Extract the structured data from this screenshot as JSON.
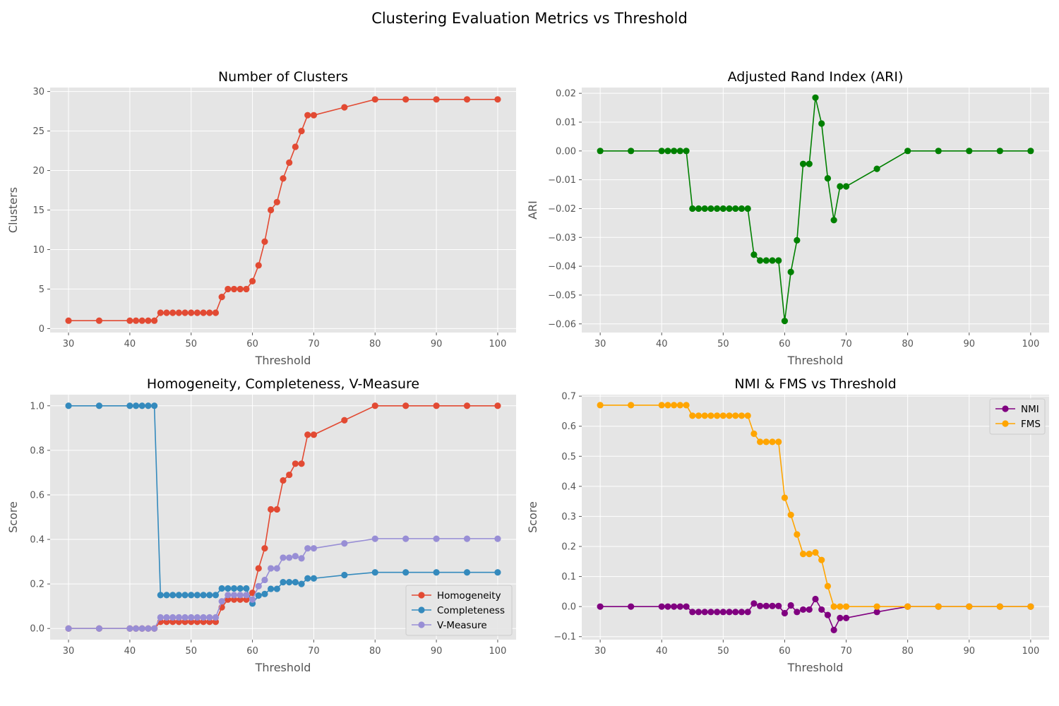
{
  "figure": {
    "suptitle": "Clustering Evaluation Metrics vs Threshold"
  },
  "chart_data": [
    {
      "type": "line",
      "title": "Number of Clusters",
      "xlabel": "Threshold",
      "ylabel": "Clusters",
      "xlim": [
        27,
        103
      ],
      "ylim": [
        -0.5,
        30.5
      ],
      "xticks": [
        30,
        40,
        50,
        60,
        70,
        80,
        90,
        100
      ],
      "yticks": [
        0,
        5,
        10,
        15,
        20,
        25,
        30
      ],
      "grid": true,
      "legend": null,
      "x": [
        30,
        35,
        40,
        41,
        42,
        43,
        44,
        45,
        46,
        47,
        48,
        49,
        50,
        51,
        52,
        53,
        54,
        55,
        56,
        57,
        58,
        59,
        60,
        61,
        62,
        63,
        64,
        65,
        66,
        67,
        68,
        69,
        70,
        75,
        80,
        85,
        90,
        95,
        100
      ],
      "series": [
        {
          "color": "#E24A33",
          "values": [
            1,
            1,
            1,
            1,
            1,
            1,
            1,
            2,
            2,
            2,
            2,
            2,
            2,
            2,
            2,
            2,
            2,
            4,
            5,
            5,
            5,
            5,
            6,
            8,
            11,
            15,
            16,
            19,
            21,
            23,
            25,
            27,
            27,
            28,
            29,
            29,
            29,
            29,
            29
          ]
        }
      ]
    },
    {
      "type": "line",
      "title": "Adjusted Rand Index (ARI)",
      "xlabel": "Threshold",
      "ylabel": "ARI",
      "xlim": [
        27,
        103
      ],
      "ylim": [
        -0.063,
        0.022
      ],
      "xticks": [
        30,
        40,
        50,
        60,
        70,
        80,
        90,
        100
      ],
      "yticks": [
        -0.06,
        -0.05,
        -0.04,
        -0.03,
        -0.02,
        -0.01,
        0.0,
        0.01,
        0.02
      ],
      "ytick_labels": [
        "−0.06",
        "−0.05",
        "−0.04",
        "−0.03",
        "−0.02",
        "−0.01",
        "0.00",
        "0.01",
        "0.02"
      ],
      "grid": true,
      "legend": null,
      "x": [
        30,
        35,
        40,
        41,
        42,
        43,
        44,
        45,
        46,
        47,
        48,
        49,
        50,
        51,
        52,
        53,
        54,
        55,
        56,
        57,
        58,
        59,
        60,
        61,
        62,
        63,
        64,
        65,
        66,
        67,
        68,
        69,
        70,
        75,
        80,
        85,
        90,
        95,
        100
      ],
      "series": [
        {
          "color": "#008000",
          "values": [
            0,
            0,
            0,
            0,
            0,
            0,
            0,
            -0.02,
            -0.02,
            -0.02,
            -0.02,
            -0.02,
            -0.02,
            -0.02,
            -0.02,
            -0.02,
            -0.02,
            -0.036,
            -0.038,
            -0.038,
            -0.038,
            -0.038,
            -0.059,
            -0.042,
            -0.031,
            -0.0045,
            -0.0045,
            0.0185,
            0.0095,
            -0.0095,
            -0.024,
            -0.0123,
            -0.0123,
            -0.0062,
            0,
            0,
            0,
            0,
            0
          ]
        }
      ]
    },
    {
      "type": "line",
      "title": "Homogeneity, Completeness, V-Measure",
      "xlabel": "Threshold",
      "ylabel": "Score",
      "xlim": [
        27,
        103
      ],
      "ylim": [
        -0.05,
        1.05
      ],
      "xticks": [
        30,
        40,
        50,
        60,
        70,
        80,
        90,
        100
      ],
      "yticks": [
        0.0,
        0.2,
        0.4,
        0.6,
        0.8,
        1.0
      ],
      "grid": true,
      "legend": "lower-right",
      "x": [
        30,
        35,
        40,
        41,
        42,
        43,
        44,
        45,
        46,
        47,
        48,
        49,
        50,
        51,
        52,
        53,
        54,
        55,
        56,
        57,
        58,
        59,
        60,
        61,
        62,
        63,
        64,
        65,
        66,
        67,
        68,
        69,
        70,
        75,
        80,
        85,
        90,
        95,
        100
      ],
      "series": [
        {
          "name": "Homogeneity",
          "color": "#E24A33",
          "values": [
            0,
            0,
            0,
            0,
            0,
            0,
            0,
            0.03,
            0.03,
            0.03,
            0.03,
            0.03,
            0.03,
            0.03,
            0.03,
            0.03,
            0.03,
            0.095,
            0.13,
            0.13,
            0.13,
            0.13,
            0.16,
            0.27,
            0.36,
            0.535,
            0.535,
            0.665,
            0.69,
            0.74,
            0.74,
            0.87,
            0.87,
            0.935,
            1.0,
            1.0,
            1.0,
            1.0,
            1.0
          ]
        },
        {
          "name": "Completeness",
          "color": "#348ABD",
          "values": [
            1.0,
            1.0,
            1.0,
            1.0,
            1.0,
            1.0,
            1.0,
            0.15,
            0.15,
            0.15,
            0.15,
            0.15,
            0.15,
            0.15,
            0.15,
            0.15,
            0.15,
            0.18,
            0.18,
            0.18,
            0.18,
            0.18,
            0.112,
            0.148,
            0.155,
            0.178,
            0.178,
            0.208,
            0.208,
            0.208,
            0.2,
            0.225,
            0.225,
            0.24,
            0.252,
            0.252,
            0.252,
            0.252,
            0.252
          ]
        },
        {
          "name": "V-Measure",
          "color": "#988ED5",
          "values": [
            0,
            0,
            0,
            0,
            0,
            0,
            0,
            0.05,
            0.05,
            0.05,
            0.05,
            0.05,
            0.05,
            0.05,
            0.05,
            0.05,
            0.05,
            0.122,
            0.15,
            0.15,
            0.15,
            0.15,
            0.13,
            0.19,
            0.218,
            0.27,
            0.27,
            0.318,
            0.318,
            0.325,
            0.315,
            0.36,
            0.36,
            0.382,
            0.403,
            0.403,
            0.403,
            0.403,
            0.403
          ]
        }
      ]
    },
    {
      "type": "line",
      "title": "NMI & FMS vs Threshold",
      "xlabel": "Threshold",
      "ylabel": "Score",
      "xlim": [
        27,
        103
      ],
      "ylim": [
        -0.11,
        0.705
      ],
      "xticks": [
        30,
        40,
        50,
        60,
        70,
        80,
        90,
        100
      ],
      "yticks": [
        -0.1,
        0.0,
        0.1,
        0.2,
        0.3,
        0.4,
        0.5,
        0.6,
        0.7
      ],
      "ytick_labels": [
        "−0.1",
        "0.0",
        "0.1",
        "0.2",
        "0.3",
        "0.4",
        "0.5",
        "0.6",
        "0.7"
      ],
      "grid": true,
      "legend": "upper-right",
      "x": [
        30,
        35,
        40,
        41,
        42,
        43,
        44,
        45,
        46,
        47,
        48,
        49,
        50,
        51,
        52,
        53,
        54,
        55,
        56,
        57,
        58,
        59,
        60,
        61,
        62,
        63,
        64,
        65,
        66,
        67,
        68,
        69,
        70,
        75,
        80,
        85,
        90,
        95,
        100
      ],
      "series": [
        {
          "name": "NMI",
          "color": "#800080",
          "values": [
            0,
            0,
            0,
            0,
            0,
            0,
            0,
            -0.018,
            -0.018,
            -0.018,
            -0.018,
            -0.018,
            -0.018,
            -0.018,
            -0.018,
            -0.018,
            -0.018,
            0.01,
            0.002,
            0.002,
            0.002,
            0.002,
            -0.022,
            0.004,
            -0.018,
            -0.01,
            -0.01,
            0.025,
            -0.01,
            -0.028,
            -0.078,
            -0.038,
            -0.038,
            -0.018,
            0,
            0,
            0,
            0,
            0
          ]
        },
        {
          "name": "FMS",
          "color": "#FFA500",
          "values": [
            0.67,
            0.67,
            0.67,
            0.67,
            0.67,
            0.67,
            0.67,
            0.635,
            0.635,
            0.635,
            0.635,
            0.635,
            0.635,
            0.635,
            0.635,
            0.635,
            0.635,
            0.575,
            0.548,
            0.548,
            0.548,
            0.548,
            0.362,
            0.305,
            0.24,
            0.175,
            0.175,
            0.18,
            0.155,
            0.068,
            0,
            0,
            0,
            0,
            0,
            0,
            0,
            0,
            0
          ]
        }
      ]
    }
  ]
}
